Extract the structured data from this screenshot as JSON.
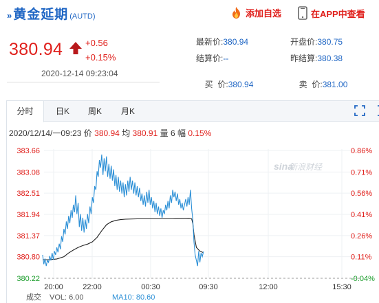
{
  "header": {
    "chevron": "»",
    "name": "黄金延期",
    "code": "(AUTD)",
    "add_favorite": "添加自选",
    "view_in_app": "在APP中查看"
  },
  "price": {
    "last": "380.94",
    "change": "+0.56",
    "change_pct": "+0.15%",
    "time": "2020-12-14 09:23:04"
  },
  "quote": {
    "latest_label": "最新价:",
    "latest": "380.94",
    "open_label": "开盘价:",
    "open": "380.75",
    "settle_label": "结算价:",
    "settle": "--",
    "prev_settle_label": "昨结算:",
    "prev_settle": "380.38",
    "buy_label": "买  价:",
    "buy": "380.94",
    "sell_label": "卖  价:",
    "sell": "381.00"
  },
  "tabs": [
    {
      "label": "分时",
      "active": true
    },
    {
      "label": "日K",
      "active": false
    },
    {
      "label": "周K",
      "active": false
    },
    {
      "label": "月K",
      "active": false
    }
  ],
  "info": {
    "datetime": "2020/12/14/一09:23",
    "price_label": "价",
    "price": "380.94",
    "avg_label": "均",
    "avg": "380.91",
    "vol_label": "量",
    "vol": "6",
    "amp_label": "幅",
    "amp": "0.15%"
  },
  "watermark": "新浪财经",
  "footer": {
    "vol_label": "VOL: 6.00",
    "ma10_label": "MA10: 80.60",
    "left_cut": "成交"
  },
  "colors": {
    "up": "#e0201c",
    "down": "#1a9c2a",
    "price_line": "#2b8fd6",
    "avg_line": "#222222",
    "brand_blue": "#1f66c4"
  },
  "chart_data": {
    "type": "line",
    "y_ticks": [
      "383.66",
      "383.08",
      "382.51",
      "381.94",
      "381.37",
      "380.80",
      "380.22"
    ],
    "pct_ticks": [
      "0.86%",
      "0.71%",
      "0.56%",
      "0.41%",
      "0.26%",
      "0.11%",
      "-0.04%"
    ],
    "x_ticks": [
      "20:00",
      "22:00",
      "00:30",
      "09:30",
      "12:00",
      "15:30"
    ],
    "ylim": [
      380.22,
      383.66
    ],
    "reference": 380.38,
    "series": [
      {
        "kind": "price",
        "points": [
          [
            0,
            380.85
          ],
          [
            1,
            380.6
          ],
          [
            2,
            380.75
          ],
          [
            3,
            380.55
          ],
          [
            4,
            380.7
          ],
          [
            5,
            380.65
          ],
          [
            6,
            380.82
          ],
          [
            7,
            380.7
          ],
          [
            8,
            380.9
          ],
          [
            9,
            380.72
          ],
          [
            10,
            380.95
          ],
          [
            11,
            380.85
          ],
          [
            12,
            381.05
          ],
          [
            13,
            380.92
          ],
          [
            14,
            381.15
          ],
          [
            15,
            381.0
          ],
          [
            16,
            381.35
          ],
          [
            17,
            381.2
          ],
          [
            18,
            381.55
          ],
          [
            19,
            381.4
          ],
          [
            20,
            381.75
          ],
          [
            21,
            381.55
          ],
          [
            22,
            381.9
          ],
          [
            23,
            381.7
          ],
          [
            24,
            382.05
          ],
          [
            25,
            381.85
          ],
          [
            26,
            382.2
          ],
          [
            27,
            382.0
          ],
          [
            28,
            382.45
          ],
          [
            29,
            381.95
          ],
          [
            30,
            382.25
          ],
          [
            31,
            381.6
          ],
          [
            32,
            381.95
          ],
          [
            33,
            381.5
          ],
          [
            34,
            381.85
          ],
          [
            35,
            381.45
          ],
          [
            36,
            381.8
          ],
          [
            37,
            381.55
          ],
          [
            38,
            381.95
          ],
          [
            39,
            381.7
          ],
          [
            40,
            382.15
          ],
          [
            41,
            381.95
          ],
          [
            42,
            382.4
          ],
          [
            43,
            382.25
          ],
          [
            44,
            382.7
          ],
          [
            45,
            382.6
          ],
          [
            46,
            383.1
          ],
          [
            47,
            382.95
          ],
          [
            48,
            383.4
          ],
          [
            49,
            383.2
          ],
          [
            50,
            383.55
          ],
          [
            51,
            383.0
          ],
          [
            52,
            383.45
          ],
          [
            53,
            383.1
          ],
          [
            54,
            383.5
          ],
          [
            55,
            382.95
          ],
          [
            56,
            383.3
          ],
          [
            57,
            382.9
          ],
          [
            58,
            383.25
          ],
          [
            59,
            382.85
          ],
          [
            60,
            383.15
          ],
          [
            61,
            382.7
          ],
          [
            62,
            383.0
          ],
          [
            63,
            382.6
          ],
          [
            64,
            382.95
          ],
          [
            65,
            382.55
          ],
          [
            66,
            382.85
          ],
          [
            67,
            382.5
          ],
          [
            68,
            382.8
          ],
          [
            69,
            382.4
          ],
          [
            70,
            382.75
          ],
          [
            71,
            382.45
          ],
          [
            72,
            382.85
          ],
          [
            73,
            382.55
          ],
          [
            74,
            382.95
          ],
          [
            75,
            382.6
          ],
          [
            76,
            382.85
          ],
          [
            77,
            382.5
          ],
          [
            78,
            382.8
          ],
          [
            79,
            382.45
          ],
          [
            80,
            382.7
          ],
          [
            81,
            382.4
          ],
          [
            82,
            382.65
          ],
          [
            83,
            382.3
          ],
          [
            84,
            382.5
          ],
          [
            85,
            382.2
          ],
          [
            86,
            382.45
          ],
          [
            87,
            382.15
          ],
          [
            88,
            382.55
          ],
          [
            89,
            382.25
          ],
          [
            90,
            382.6
          ],
          [
            91,
            382.2
          ],
          [
            92,
            382.4
          ],
          [
            93,
            382.1
          ],
          [
            94,
            382.3
          ],
          [
            95,
            382.0
          ],
          [
            96,
            382.25
          ],
          [
            97,
            381.95
          ],
          [
            98,
            382.15
          ],
          [
            99,
            381.9
          ],
          [
            100,
            382.1
          ],
          [
            101,
            381.85
          ],
          [
            102,
            382.05
          ],
          [
            103,
            381.95
          ],
          [
            104,
            382.2
          ],
          [
            105,
            382.05
          ],
          [
            106,
            382.3
          ],
          [
            107,
            382.1
          ],
          [
            108,
            382.45
          ],
          [
            109,
            382.25
          ],
          [
            110,
            382.6
          ],
          [
            111,
            382.4
          ],
          [
            112,
            382.55
          ],
          [
            113,
            382.3
          ],
          [
            114,
            382.5
          ],
          [
            115,
            382.2
          ],
          [
            116,
            382.35
          ],
          [
            117,
            382.1
          ],
          [
            118,
            382.25
          ],
          [
            119,
            382.05
          ],
          [
            120,
            382.2
          ],
          [
            121,
            382.35
          ],
          [
            122,
            382.15
          ],
          [
            123,
            382.4
          ],
          [
            124,
            382.2
          ],
          [
            125,
            382.6
          ],
          [
            126,
            382.1
          ],
          [
            127,
            381.8
          ],
          [
            128,
            381.2
          ],
          [
            129,
            380.85
          ],
          [
            130,
            380.7
          ],
          [
            131,
            380.55
          ],
          [
            132,
            380.95
          ],
          [
            133,
            380.65
          ],
          [
            134,
            380.9
          ],
          [
            135,
            380.8
          ],
          [
            136,
            380.94
          ]
        ]
      },
      {
        "kind": "average",
        "points": [
          [
            0,
            380.72
          ],
          [
            6,
            380.72
          ],
          [
            12,
            380.74
          ],
          [
            18,
            380.8
          ],
          [
            22,
            380.9
          ],
          [
            26,
            380.98
          ],
          [
            30,
            381.05
          ],
          [
            34,
            381.1
          ],
          [
            38,
            381.14
          ],
          [
            42,
            381.2
          ],
          [
            46,
            381.32
          ],
          [
            50,
            381.5
          ],
          [
            54,
            381.66
          ],
          [
            58,
            381.74
          ],
          [
            62,
            381.78
          ],
          [
            66,
            381.8
          ],
          [
            70,
            381.81
          ],
          [
            80,
            381.82
          ],
          [
            95,
            381.82
          ],
          [
            110,
            381.82
          ],
          [
            124,
            381.83
          ],
          [
            126,
            381.82
          ],
          [
            127,
            381.7
          ],
          [
            128,
            381.4
          ],
          [
            130,
            381.05
          ],
          [
            133,
            380.95
          ],
          [
            136,
            380.91
          ]
        ]
      }
    ]
  }
}
